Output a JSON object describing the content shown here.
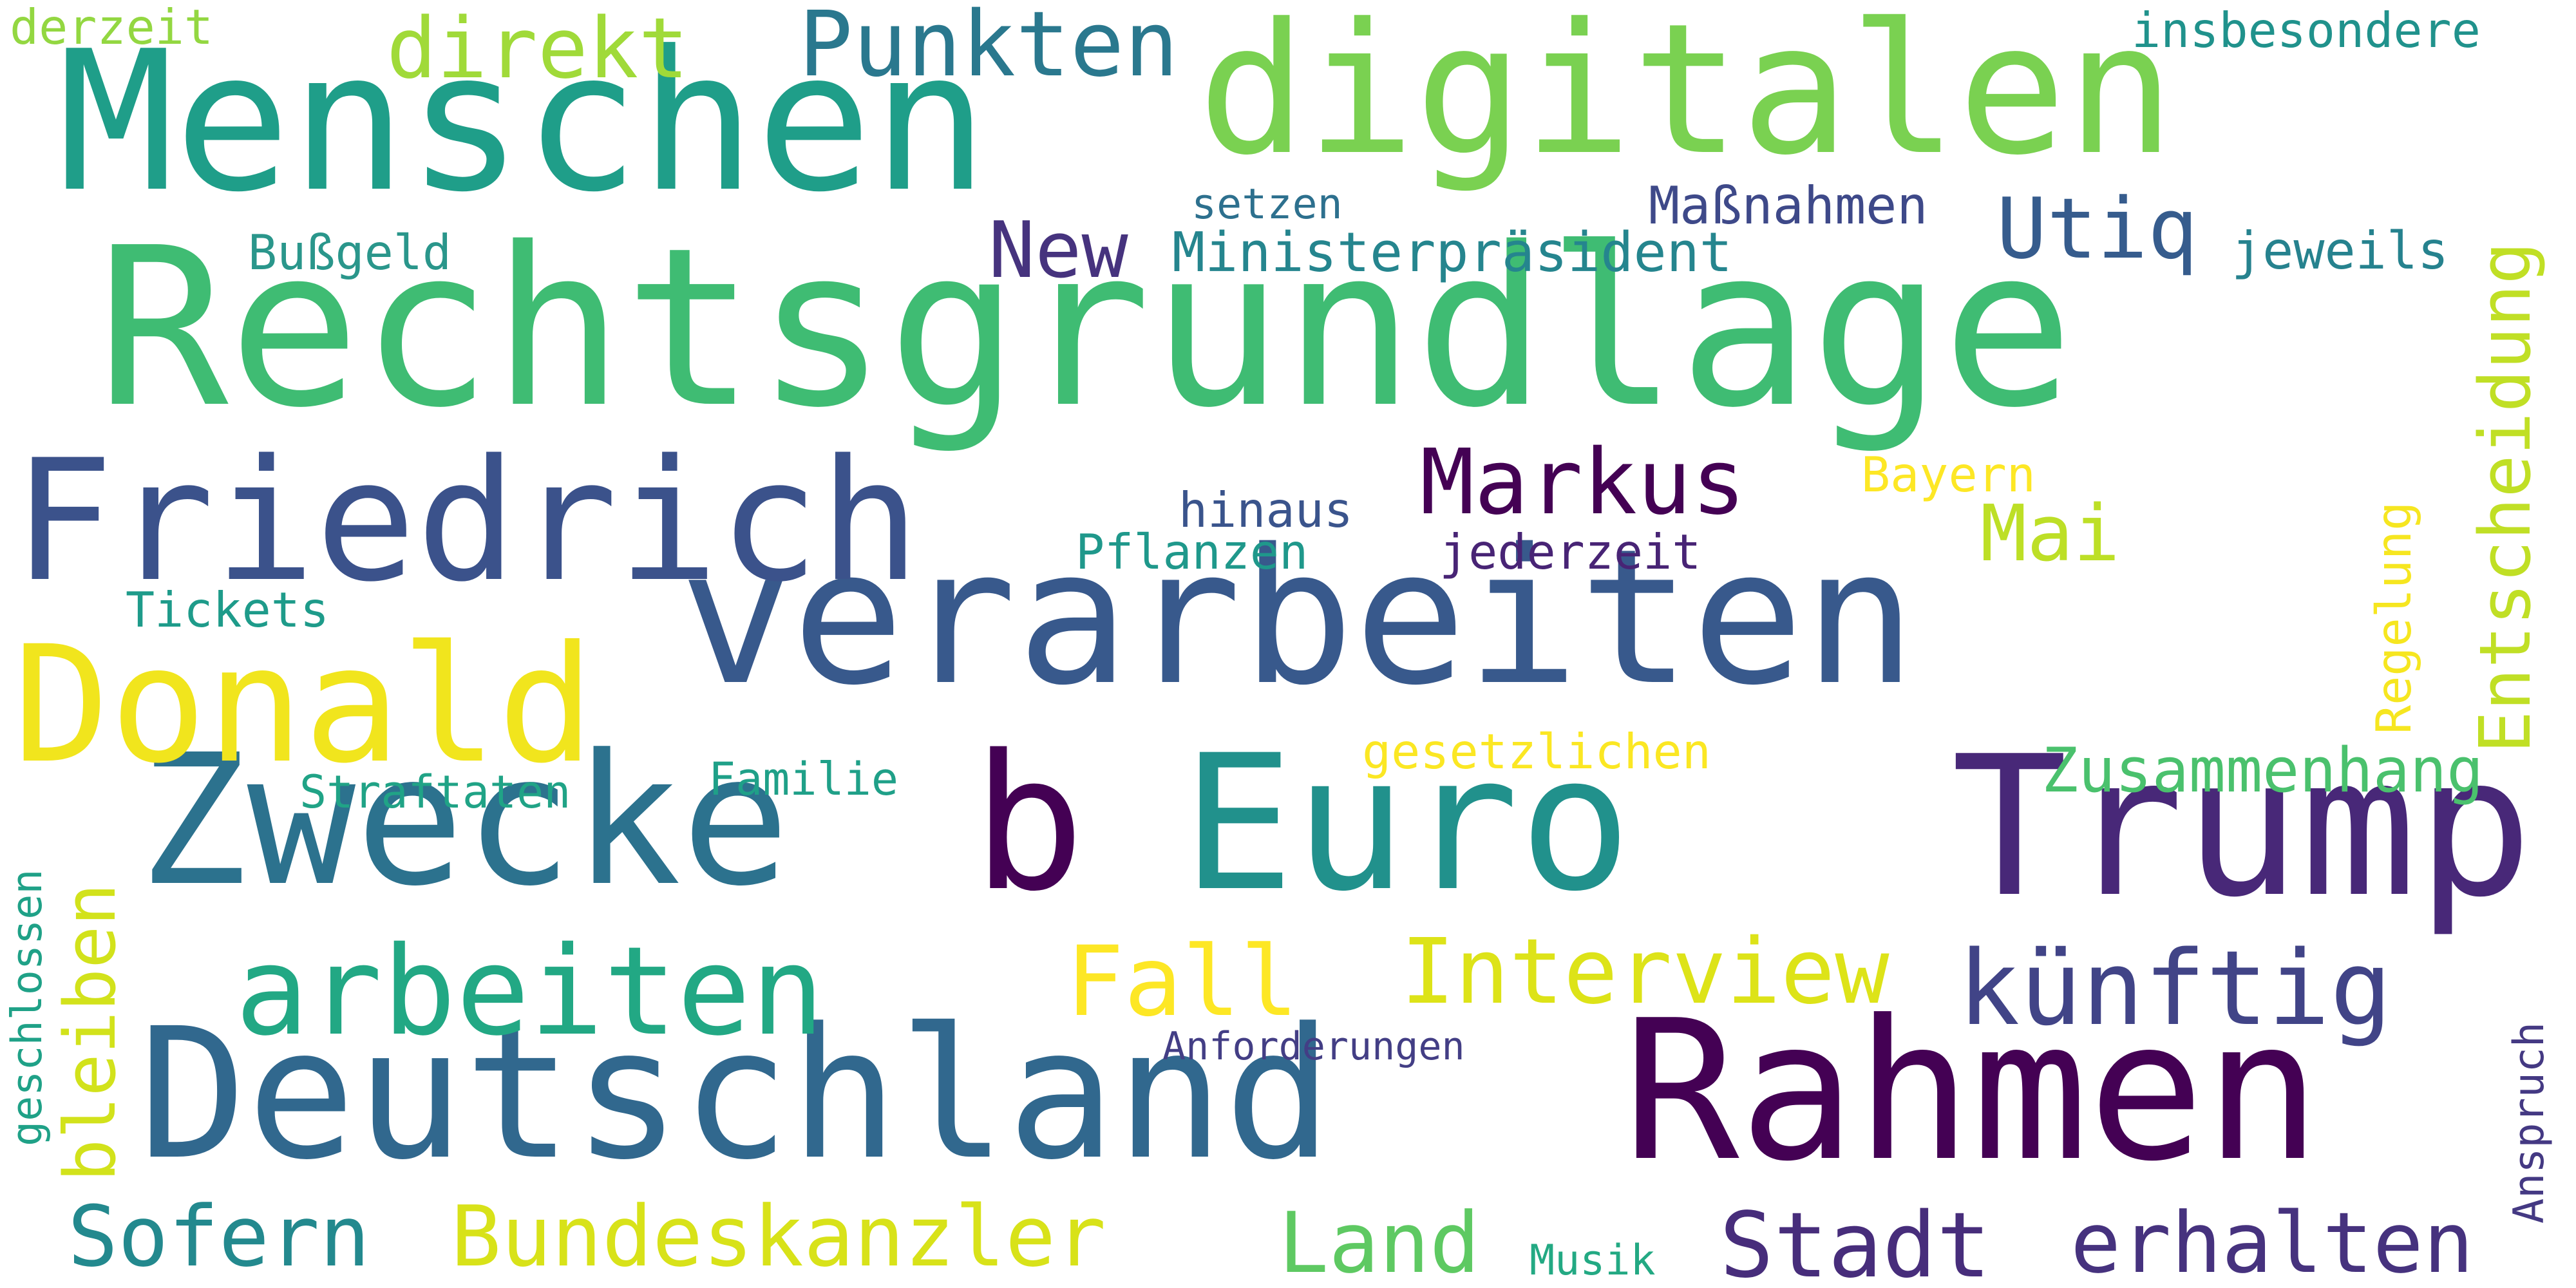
{
  "words": [
    {
      "id": "rechtsgrundlage",
      "text": "Rechtsgrundlage",
      "color": "#3fbc73"
    },
    {
      "id": "verarbeiten",
      "text": "verarbeiten",
      "color": "#38598c"
    },
    {
      "id": "menschen",
      "text": "Menschen",
      "color": "#1f9e89"
    },
    {
      "id": "digitalen",
      "text": "digitalen",
      "color": "#7ad151"
    },
    {
      "id": "deutschland",
      "text": "Deutschland",
      "color": "#31688e"
    },
    {
      "id": "rahmen",
      "text": "Rahmen",
      "color": "#440154"
    },
    {
      "id": "euro",
      "text": "Euro",
      "color": "#21918c"
    },
    {
      "id": "trump",
      "text": "Trump",
      "color": "#482878"
    },
    {
      "id": "zwecke",
      "text": "Zwecke",
      "color": "#2c728e"
    },
    {
      "id": "friedrich",
      "text": "Friedrich",
      "color": "#3b528b"
    },
    {
      "id": "donald",
      "text": "Donald",
      "color": "#f1e51d"
    },
    {
      "id": "b",
      "text": "b",
      "color": "#440154"
    },
    {
      "id": "arbeiten",
      "text": "arbeiten",
      "color": "#22a884"
    },
    {
      "id": "bundeskanzler",
      "text": "Bundeskanzler",
      "color": "#d8e219"
    },
    {
      "id": "sofern",
      "text": "Sofern",
      "color": "#23898e"
    },
    {
      "id": "stadt",
      "text": "Stadt",
      "color": "#472d7b"
    },
    {
      "id": "erhalten",
      "text": "erhalten",
      "color": "#46327e"
    },
    {
      "id": "land",
      "text": "Land",
      "color": "#5ec962"
    },
    {
      "id": "kuenftig",
      "text": "künftig",
      "color": "#414487"
    },
    {
      "id": "interview",
      "text": "Interview",
      "color": "#dde318"
    },
    {
      "id": "fall",
      "text": "Fall",
      "color": "#fde725"
    },
    {
      "id": "markus",
      "text": "Markus",
      "color": "#440154"
    },
    {
      "id": "punkten",
      "text": "Punkten",
      "color": "#2a788e"
    },
    {
      "id": "direkt",
      "text": "direkt",
      "color": "#a0da39"
    },
    {
      "id": "utiq",
      "text": "Utiq",
      "color": "#365c8d"
    },
    {
      "id": "new",
      "text": "New",
      "color": "#46337e"
    },
    {
      "id": "mai",
      "text": "Mai",
      "color": "#bddf26"
    },
    {
      "id": "zusammenhang",
      "text": "Zusammenhang",
      "color": "#4ac16d"
    },
    {
      "id": "entscheidung",
      "text": "Entscheidung",
      "color": "#c0df25"
    },
    {
      "id": "bleiben",
      "text": "bleiben",
      "color": "#d2e21b"
    },
    {
      "id": "ministerpraesident",
      "text": "Ministerpräsident",
      "color": "#25858e"
    },
    {
      "id": "massnahmen",
      "text": "Maßnahmen",
      "color": "#3e4989"
    },
    {
      "id": "jeweils",
      "text": "jeweils",
      "color": "#26828e"
    },
    {
      "id": "setzen",
      "text": "setzen",
      "color": "#2d708e"
    },
    {
      "id": "bussgeld",
      "text": "Bußgeld",
      "color": "#2a968b"
    },
    {
      "id": "insbesondere",
      "text": "insbesondere",
      "color": "#20928c"
    },
    {
      "id": "derzeit",
      "text": "derzeit",
      "color": "#93d741"
    },
    {
      "id": "hinaus",
      "text": "hinaus",
      "color": "#3a548c"
    },
    {
      "id": "pflanzen",
      "text": "Pflanzen",
      "color": "#1f988b"
    },
    {
      "id": "jederzeit",
      "text": "jederzeit",
      "color": "#482475"
    },
    {
      "id": "bayern",
      "text": "Bayern",
      "color": "#fde725"
    },
    {
      "id": "tickets",
      "text": "Tickets",
      "color": "#1e9b8a"
    },
    {
      "id": "regelung",
      "text": "Regelung",
      "color": "#f6e620"
    },
    {
      "id": "gesetzlichen",
      "text": "gesetzlichen",
      "color": "#fbe723"
    },
    {
      "id": "straftaten",
      "text": "Straftaten",
      "color": "#20a386"
    },
    {
      "id": "familie",
      "text": "Familie",
      "color": "#1fa088"
    },
    {
      "id": "geschlossen",
      "text": "geschlossen",
      "color": "#1fa187"
    },
    {
      "id": "anforderungen",
      "text": "Anforderungen",
      "color": "#433e85"
    },
    {
      "id": "anspruch",
      "text": "Anspruch",
      "color": "#443983"
    },
    {
      "id": "musik",
      "text": "Musik",
      "color": "#23a983"
    }
  ]
}
